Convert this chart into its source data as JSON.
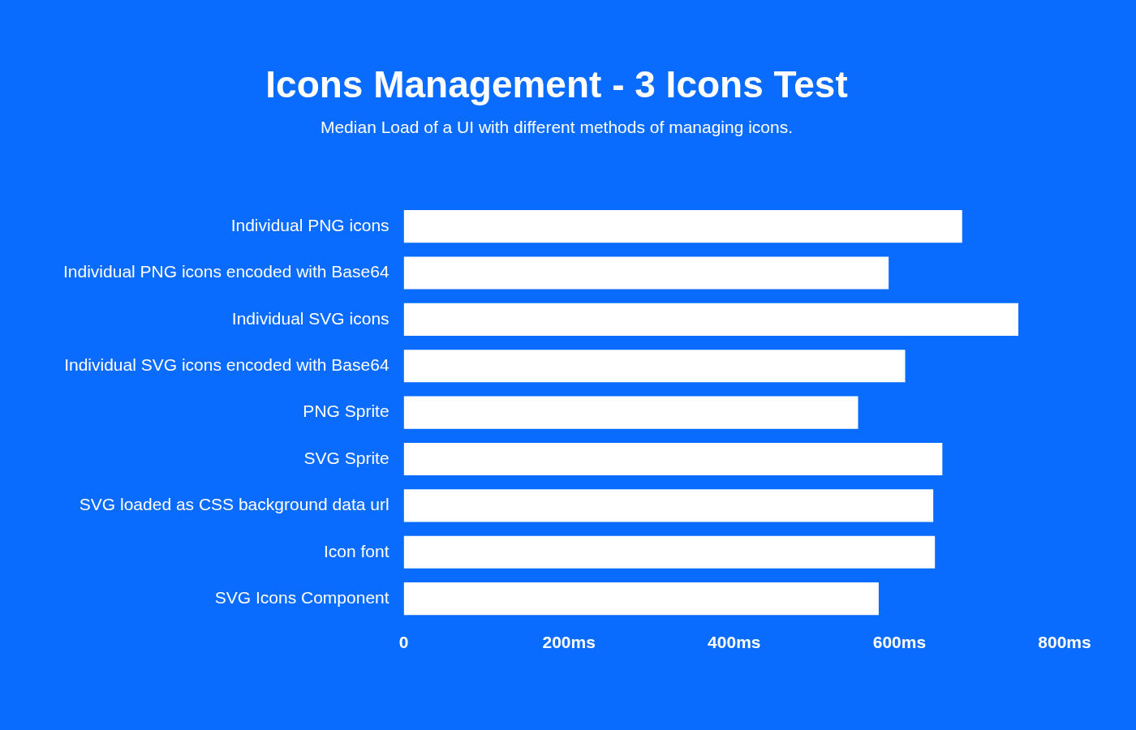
{
  "chart_data": {
    "type": "bar",
    "orientation": "horizontal",
    "title": "Icons Management - 3 Icons Test",
    "subtitle": "Median Load of a UI with different methods of managing icons.",
    "categories": [
      "Individual PNG icons",
      "Individual PNG icons encoded with Base64",
      "Individual SVG icons",
      "Individual SVG icons encoded with Base64",
      "PNG Sprite",
      "SVG Sprite",
      "SVG loaded as CSS background data url",
      "Icon font",
      "SVG Icons Component"
    ],
    "values": [
      676,
      587,
      744,
      607,
      550,
      652,
      641,
      643,
      575
    ],
    "color": "#ffffff",
    "xlim": [
      0,
      800
    ],
    "xticks": [
      0,
      {
        "value": 200,
        "label": "200ms"
      },
      {
        "value": 400,
        "label": "400ms"
      },
      {
        "value": 600,
        "label": "600ms"
      },
      {
        "value": 800,
        "label": "800ms"
      }
    ],
    "grid": false,
    "legend": false
  }
}
